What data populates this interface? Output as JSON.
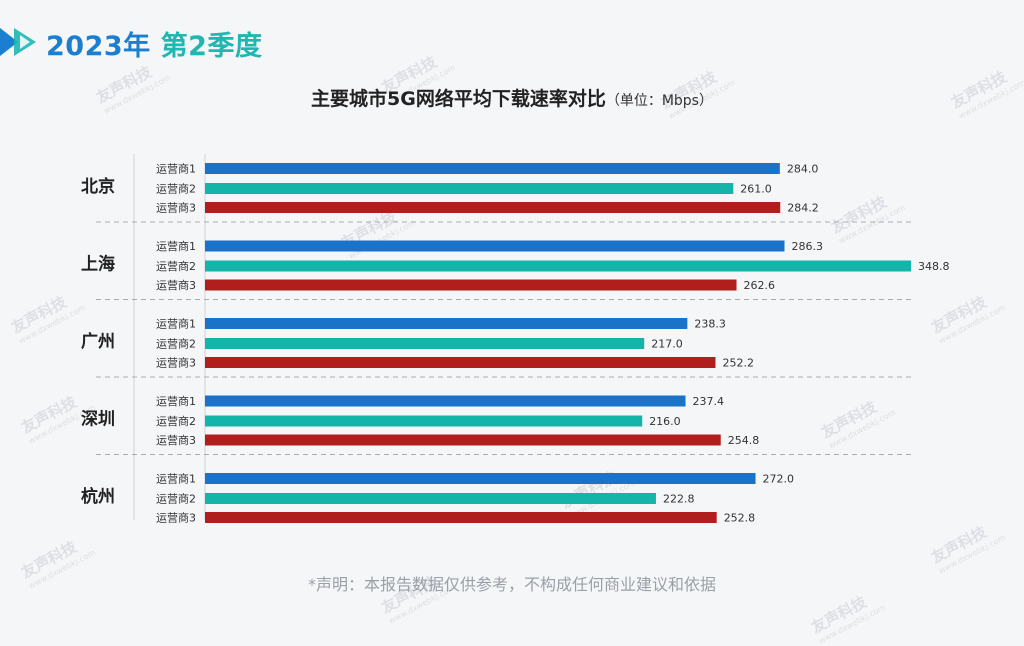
{
  "header": {
    "year": "2023年",
    "quarter": "第2季度"
  },
  "watermark": {
    "brand": "友声科技",
    "domain": "www.dxwebkj.com"
  },
  "chart_data": {
    "type": "bar",
    "orientation": "horizontal",
    "title": "主要城市5G网络平均下载速率对比",
    "unit_label": "（单位：Mbps）",
    "groups": [
      "北京",
      "上海",
      "广州",
      "深圳",
      "杭州"
    ],
    "series": [
      {
        "name": "运营商1",
        "color": "#1a73c8",
        "values": [
          284.0,
          286.3,
          238.3,
          237.4,
          272.0
        ]
      },
      {
        "name": "运营商2",
        "color": "#14b5a8",
        "values": [
          261.0,
          348.8,
          217.0,
          216.0,
          222.8
        ]
      },
      {
        "name": "运营商3",
        "color": "#b01e1e",
        "values": [
          284.2,
          262.6,
          252.2,
          254.8,
          252.8
        ]
      }
    ],
    "value_labels": [
      [
        "284.0",
        "261.0",
        "284.2"
      ],
      [
        "286.3",
        "348.8",
        "262.6"
      ],
      [
        "238.3",
        "217.0",
        "252.2"
      ],
      [
        "237.4",
        "216.0",
        "254.8"
      ],
      [
        "272.0",
        "222.8",
        "252.8"
      ]
    ],
    "xlim": [
      0,
      348.8
    ]
  },
  "footnote": "*声明：本报告数据仅供参考，不构成任何商业建议和依据"
}
